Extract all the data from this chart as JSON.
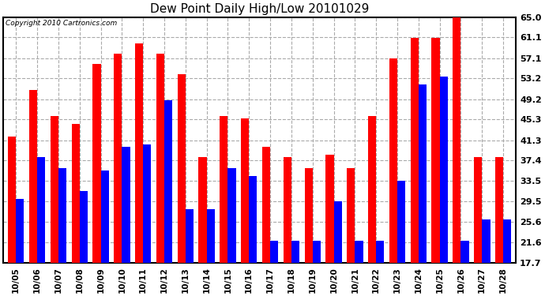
{
  "title": "Dew Point Daily High/Low 20101029",
  "copyright": "Copyright 2010 Cartronics.com",
  "categories": [
    "10/05",
    "10/06",
    "10/07",
    "10/08",
    "10/09",
    "10/10",
    "10/11",
    "10/12",
    "10/13",
    "10/14",
    "10/15",
    "10/16",
    "10/17",
    "10/18",
    "10/19",
    "10/20",
    "10/21",
    "10/22",
    "10/23",
    "10/24",
    "10/25",
    "10/26",
    "10/27",
    "10/28"
  ],
  "highs": [
    42.0,
    51.0,
    46.0,
    44.5,
    56.0,
    58.0,
    60.0,
    58.0,
    54.0,
    38.0,
    46.0,
    45.5,
    40.0,
    38.0,
    36.0,
    38.5,
    36.0,
    46.0,
    57.0,
    61.0,
    61.0,
    65.0,
    38.0,
    38.0
  ],
  "lows": [
    30.0,
    38.0,
    36.0,
    31.5,
    35.5,
    40.0,
    40.5,
    49.0,
    28.0,
    28.0,
    36.0,
    34.5,
    22.0,
    22.0,
    22.0,
    29.5,
    22.0,
    22.0,
    33.5,
    52.0,
    53.5,
    22.0,
    26.0,
    26.0
  ],
  "high_color": "#ff0000",
  "low_color": "#0000ff",
  "bg_color": "#ffffff",
  "plot_bg_color": "#ffffff",
  "grid_color": "#aaaaaa",
  "yticks": [
    17.7,
    21.6,
    25.6,
    29.5,
    33.5,
    37.4,
    41.3,
    45.3,
    49.2,
    53.2,
    57.1,
    61.1,
    65.0
  ],
  "ymin": 17.7,
  "ymax": 65.0,
  "bar_width": 0.38,
  "fig_width": 6.9,
  "fig_height": 3.75,
  "dpi": 100
}
